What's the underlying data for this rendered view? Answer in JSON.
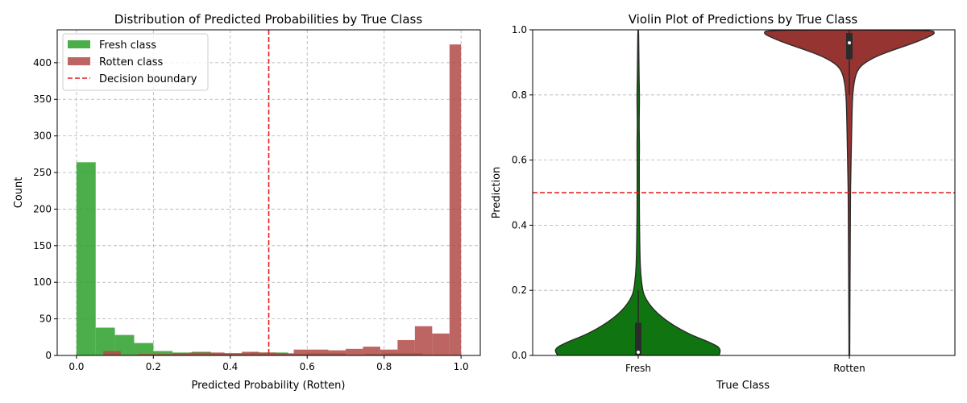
{
  "chart_data": [
    {
      "type": "histogram",
      "title": "Distribution of Predicted Probabilities by True Class",
      "xlabel": "Predicted Probability (Rotten)",
      "ylabel": "Count",
      "xlim": [
        -0.05,
        1.05
      ],
      "ylim": [
        0,
        445
      ],
      "xticks": [
        0.0,
        0.2,
        0.4,
        0.6,
        0.8,
        1.0
      ],
      "xtick_labels": [
        "0.0",
        "0.2",
        "0.4",
        "0.6",
        "0.8",
        "1.0"
      ],
      "yticks": [
        0,
        50,
        100,
        150,
        200,
        250,
        300,
        350,
        400
      ],
      "ytick_labels": [
        "0",
        "50",
        "100",
        "150",
        "200",
        "250",
        "300",
        "350",
        "400"
      ],
      "grid": true,
      "legend_position": "top-left",
      "series": [
        {
          "name": "Fresh class",
          "color": "#2ca02c",
          "bin_edges": [
            0.0,
            0.05,
            0.1,
            0.15,
            0.2,
            0.25,
            0.3,
            0.35,
            0.4,
            0.45,
            0.5,
            0.55,
            0.6,
            0.65,
            0.7,
            0.75,
            0.8,
            0.85,
            0.9,
            0.95,
            1.0
          ],
          "counts": [
            264,
            38,
            28,
            17,
            6,
            4,
            5,
            3,
            3,
            4,
            4,
            2,
            3,
            3,
            1,
            2,
            3,
            3,
            1,
            1
          ]
        },
        {
          "name": "Rotten class",
          "color": "#b04a48",
          "bin_edges": [
            0.07,
            0.115,
            0.16,
            0.205,
            0.25,
            0.295,
            0.34,
            0.385,
            0.43,
            0.475,
            0.52,
            0.565,
            0.61,
            0.655,
            0.7,
            0.745,
            0.79,
            0.835,
            0.88,
            0.925,
            0.97,
            1.0
          ],
          "counts": [
            6,
            1,
            2,
            2,
            3,
            4,
            4,
            3,
            5,
            4,
            3,
            8,
            8,
            7,
            9,
            12,
            8,
            21,
            40,
            30,
            425
          ]
        }
      ],
      "reference_line": {
        "name": "Decision boundary",
        "x": 0.5,
        "color": "#e31a1c",
        "style": "dashed"
      }
    },
    {
      "type": "violin",
      "title": "Violin Plot of Predictions by True Class",
      "xlabel": "True Class",
      "ylabel": "Prediction",
      "categories": [
        "Fresh",
        "Rotten"
      ],
      "ylim": [
        0.0,
        1.0
      ],
      "yticks": [
        0.0,
        0.2,
        0.4,
        0.6,
        0.8,
        1.0
      ],
      "ytick_labels": [
        "0.0",
        "0.2",
        "0.4",
        "0.6",
        "0.8",
        "1.0"
      ],
      "grid": true,
      "reference_line": {
        "y": 0.5,
        "color": "#e31a1c",
        "style": "dashed"
      },
      "violins": [
        {
          "category": "Fresh",
          "color": "#107510",
          "box": {
            "q1": 0.0,
            "median": 0.01,
            "q3": 0.1,
            "whisker_low": 0.0,
            "whisker_high": 0.2
          },
          "profile": [
            [
              0.0,
              0.92
            ],
            [
              0.02,
              0.96
            ],
            [
              0.04,
              0.82
            ],
            [
              0.06,
              0.63
            ],
            [
              0.08,
              0.48
            ],
            [
              0.1,
              0.36
            ],
            [
              0.12,
              0.26
            ],
            [
              0.14,
              0.18
            ],
            [
              0.16,
              0.12
            ],
            [
              0.18,
              0.075
            ],
            [
              0.2,
              0.05
            ],
            [
              0.25,
              0.028
            ],
            [
              0.3,
              0.02
            ],
            [
              0.4,
              0.014
            ],
            [
              0.5,
              0.012
            ],
            [
              0.6,
              0.012
            ],
            [
              0.65,
              0.014
            ],
            [
              0.7,
              0.01
            ],
            [
              0.75,
              0.012
            ],
            [
              0.8,
              0.014
            ],
            [
              0.85,
              0.01
            ],
            [
              0.9,
              0.008
            ],
            [
              0.95,
              0.006
            ],
            [
              1.0,
              0.004
            ]
          ]
        },
        {
          "category": "Rotten",
          "color": "#963432",
          "box": {
            "q1": 0.91,
            "median": 0.96,
            "q3": 0.99,
            "whisker_low": 0.8,
            "whisker_high": 1.0
          },
          "profile": [
            [
              0.0,
              0.004
            ],
            [
              0.1,
              0.005
            ],
            [
              0.2,
              0.007
            ],
            [
              0.3,
              0.009
            ],
            [
              0.4,
              0.011
            ],
            [
              0.5,
              0.013
            ],
            [
              0.55,
              0.016
            ],
            [
              0.6,
              0.02
            ],
            [
              0.65,
              0.023
            ],
            [
              0.7,
              0.027
            ],
            [
              0.75,
              0.031
            ],
            [
              0.8,
              0.037
            ],
            [
              0.85,
              0.06
            ],
            [
              0.88,
              0.1
            ],
            [
              0.9,
              0.18
            ],
            [
              0.92,
              0.32
            ],
            [
              0.94,
              0.52
            ],
            [
              0.96,
              0.74
            ],
            [
              0.98,
              0.92
            ],
            [
              0.99,
              0.98
            ],
            [
              1.0,
              0.94
            ]
          ]
        }
      ]
    }
  ]
}
